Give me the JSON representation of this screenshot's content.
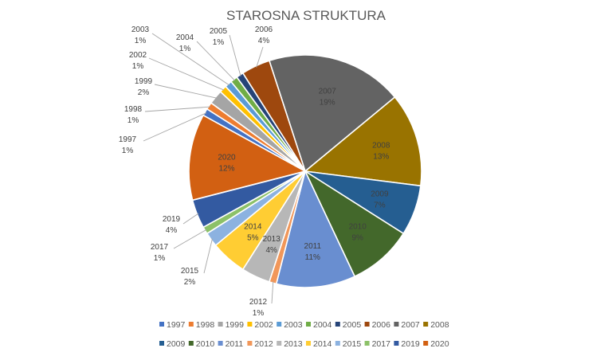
{
  "chart_data": {
    "type": "pie",
    "title": "STAROSNA STRUKTURA",
    "slices": [
      {
        "label": "2007",
        "value": 19,
        "pct": "19%",
        "color": "#636363"
      },
      {
        "label": "2008",
        "value": 13,
        "pct": "13%",
        "color": "#997300"
      },
      {
        "label": "2009",
        "value": 7,
        "pct": "7%",
        "color": "#255E91"
      },
      {
        "label": "2010",
        "value": 9,
        "pct": "9%",
        "color": "#43682B"
      },
      {
        "label": "2011",
        "value": 11,
        "pct": "11%",
        "color": "#698ED0"
      },
      {
        "label": "2012",
        "value": 1,
        "pct": "1%",
        "color": "#F1975A"
      },
      {
        "label": "2013",
        "value": 4,
        "pct": "4%",
        "color": "#B7B7B7"
      },
      {
        "label": "2014",
        "value": 5,
        "pct": "5%",
        "color": "#FFCD33"
      },
      {
        "label": "2015",
        "value": 2,
        "pct": "2%",
        "color": "#8CB2E0"
      },
      {
        "label": "2017",
        "value": 1,
        "pct": "1%",
        "color": "#8CC168"
      },
      {
        "label": "2019",
        "value": 4,
        "pct": "4%",
        "color": "#335AA1"
      },
      {
        "label": "2020",
        "value": 12,
        "pct": "12%",
        "color": "#D26012"
      },
      {
        "label": "1997",
        "value": 1,
        "pct": "1%",
        "color": "#4472C4"
      },
      {
        "label": "1998",
        "value": 1,
        "pct": "1%",
        "color": "#ED7D31"
      },
      {
        "label": "1999",
        "value": 2,
        "pct": "2%",
        "color": "#A5A5A5"
      },
      {
        "label": "2002",
        "value": 1,
        "pct": "1%",
        "color": "#FFC000"
      },
      {
        "label": "2003",
        "value": 1,
        "pct": "1%",
        "color": "#5B9BD5"
      },
      {
        "label": "2004",
        "value": 1,
        "pct": "1%",
        "color": "#70AD47"
      },
      {
        "label": "2005",
        "value": 1,
        "pct": "1%",
        "color": "#264478"
      },
      {
        "label": "2006",
        "value": 4,
        "pct": "4%",
        "color": "#9E480E"
      }
    ],
    "legend": {
      "placement": "bottom",
      "rows": [
        [
          "1997",
          "1998",
          "1999",
          "2002",
          "2003",
          "2004",
          "2005",
          "2006",
          "2007",
          "2008"
        ],
        [
          "2009",
          "2010",
          "2011",
          "2012",
          "2013",
          "2014",
          "2015",
          "2017",
          "2019",
          "2020"
        ]
      ]
    }
  }
}
